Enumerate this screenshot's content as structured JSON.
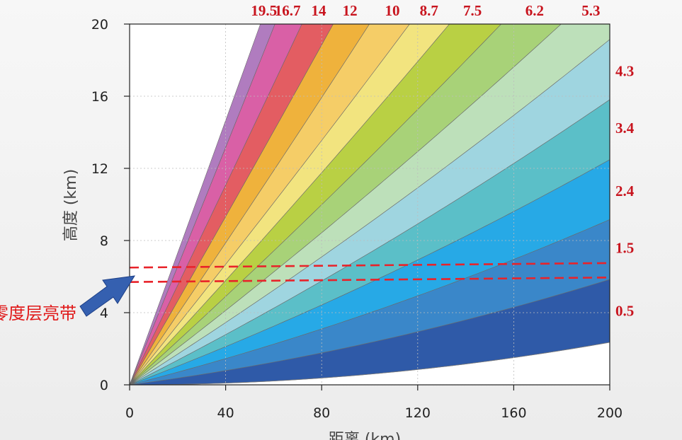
{
  "chart_data": {
    "type": "area",
    "title": "",
    "xlabel": "距离 (km)",
    "ylabel": "高度 (km)",
    "xlim": [
      0,
      200
    ],
    "ylim": [
      0,
      20
    ],
    "x_ticks": [
      "0",
      "40",
      "80",
      "120",
      "160",
      "200"
    ],
    "y_ticks": [
      "0",
      "4",
      "8",
      "12",
      "16",
      "20"
    ],
    "grid": true,
    "elevation_unit": "°",
    "elevation_angles": [
      0.5,
      1.5,
      2.4,
      3.4,
      4.3,
      5.3,
      6.2,
      7.5,
      8.7,
      10,
      12,
      14,
      16.7,
      19.5
    ],
    "elevation_labels_top": [
      "19.5",
      "16.7",
      "14",
      "12",
      "10",
      "8.7",
      "7.5",
      "6.2",
      "5.3"
    ],
    "elevation_labels_right": [
      "4.3",
      "3.4",
      "2.4",
      "1.5",
      "0.5"
    ],
    "beam_width_deg": 1.0,
    "band_colors": [
      "#2f5aa8",
      "#3a87c9",
      "#27a9e6",
      "#5bbfc8",
      "#9fd5e0",
      "#bde0ba",
      "#a8d278",
      "#b9d044",
      "#f2e47f",
      "#f5cd67",
      "#efb23c",
      "#e35d62",
      "#d960a6",
      "#b07cbf",
      "#9c2a8e"
    ],
    "bright_band": {
      "label": "零度层亮带",
      "top_km": 6.5,
      "bottom_km": 5.7
    }
  }
}
